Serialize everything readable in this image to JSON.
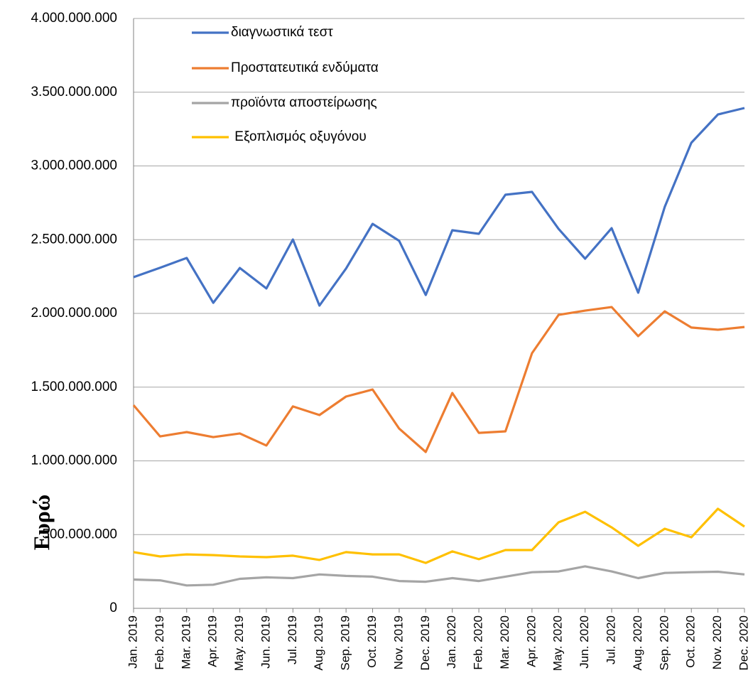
{
  "chart_data": {
    "type": "line",
    "ylabel": "Ευρώ",
    "categories": [
      "Jan. 2019",
      "Feb. 2019",
      "Mar. 2019",
      "Apr. 2019",
      "May. 2019",
      "Jun. 2019",
      "Jul. 2019",
      "Aug. 2019",
      "Sep. 2019",
      "Oct. 2019",
      "Nov. 2019",
      "Dec. 2019",
      "Jan. 2020",
      "Feb. 2020",
      "Mar. 2020",
      "Apr. 2020",
      "May. 2020",
      "Jun. 2020",
      "Jul. 2020",
      "Aug. 2020",
      "Sep. 2020",
      "Oct. 2020",
      "Nov. 2020",
      "Dec. 2020"
    ],
    "series": [
      {
        "name": "διαγνωστικά τεστ",
        "color": "#4472c4",
        "values": [
          2246000000,
          2310000000,
          2376000000,
          2072000000,
          2308000000,
          2169000000,
          2501000000,
          2053000000,
          2304000000,
          2607000000,
          2492000000,
          2125000000,
          2564000000,
          2540000000,
          2805000000,
          2824000000,
          2573000000,
          2371000000,
          2578000000,
          2140000000,
          2723000000,
          3157000000,
          3349000000,
          3393000000
        ]
      },
      {
        "name": "Προστατευτικά ενδύματα",
        "color": "#ed7d31",
        "values": [
          1378000000,
          1166000000,
          1195000000,
          1161000000,
          1186000000,
          1104000000,
          1369000000,
          1311000000,
          1436000000,
          1484000000,
          1219000000,
          1060000000,
          1460000000,
          1190000000,
          1200000000,
          1730000000,
          1990000000,
          2019000000,
          2043000000,
          1846000000,
          2014000000,
          1904000000,
          1889000000,
          1908000000
        ]
      },
      {
        "name": "προϊόντα αποστείρωσης",
        "color": "#a5a5a5",
        "values": [
          195000000,
          190000000,
          155000000,
          160000000,
          200000000,
          210000000,
          205000000,
          230000000,
          220000000,
          215000000,
          185000000,
          180000000,
          205000000,
          185000000,
          215000000,
          245000000,
          250000000,
          285000000,
          250000000,
          205000000,
          240000000,
          245000000,
          248000000,
          230000000
        ]
      },
      {
        "name": " Εξοπλισμός οξυγόνου",
        "color": "#ffc000",
        "values": [
          381000000,
          352000000,
          366000000,
          361000000,
          352000000,
          347000000,
          357000000,
          328000000,
          381000000,
          366000000,
          366000000,
          308000000,
          386000000,
          333000000,
          395000000,
          395000000,
          583000000,
          655000000,
          549000000,
          424000000,
          540000000,
          482000000,
          675000000,
          554000000
        ]
      }
    ],
    "ylim": [
      0,
      4000000000
    ],
    "yticks": [
      0,
      {
        "value": 500000000,
        "label": "500.000.000"
      },
      {
        "value": 1000000000,
        "label": "1.000.000.000"
      },
      {
        "value": 1500000000,
        "label": "1.500.000.000"
      },
      {
        "value": 2000000000,
        "label": "2.000.000.000"
      },
      {
        "value": 2500000000,
        "label": "2.500.000.000"
      },
      {
        "value": 3000000000,
        "label": "3.000.000.000"
      },
      {
        "value": 3500000000,
        "label": "3.500.000.000"
      },
      {
        "value": 4000000000,
        "label": "4.000.000.000"
      }
    ],
    "grid": true,
    "legend": "top-left"
  }
}
